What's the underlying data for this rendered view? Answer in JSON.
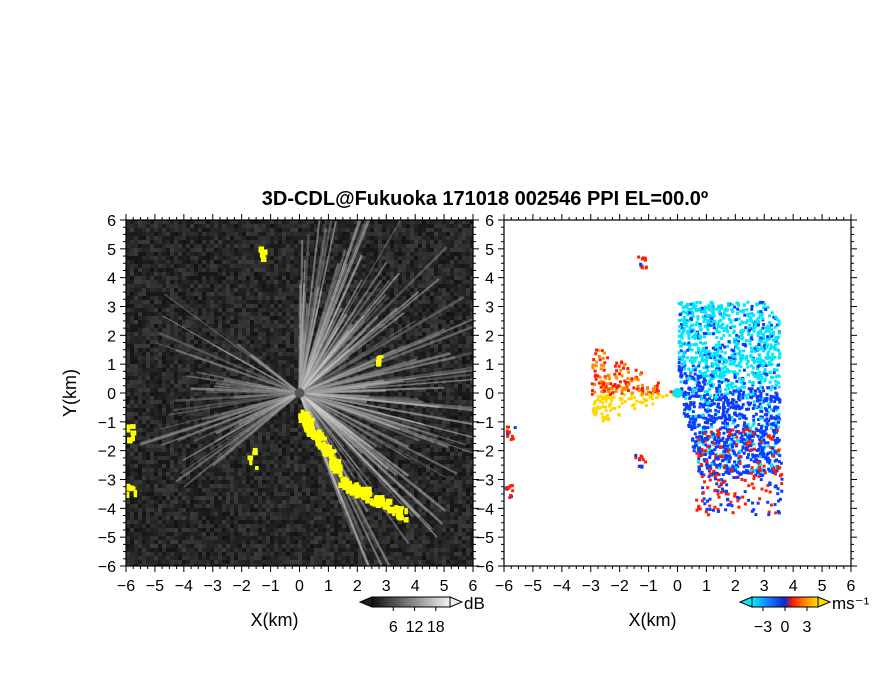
{
  "title": "3D-CDL@Fukuoka 171018 002546 PPI EL=00.0º",
  "colors": {
    "background": "#ffffff",
    "left_panel_background": "#1e1e1e",
    "yellow_highlight": "#ffff00",
    "velocity_cyan": "#00e8f8",
    "velocity_blue": "#0a3cff",
    "velocity_red": "#ff1e00",
    "velocity_orange": "#ff8c00",
    "velocity_yellow": "#ffd800"
  },
  "chart_data": [
    {
      "type": "heatmap",
      "panel": "left",
      "quantity_unit": "dB",
      "xlabel": "X(km)",
      "ylabel": "Y(km)",
      "xlim": [
        -6,
        6
      ],
      "ylim": [
        -6,
        6
      ],
      "x_ticks": [
        "−6",
        "−5",
        "−4",
        "−3",
        "−2",
        "−1",
        "0",
        "1",
        "2",
        "3",
        "4",
        "5",
        "6"
      ],
      "y_ticks": [
        "6",
        "5",
        "4",
        "3",
        "2",
        "1",
        "0",
        "−1",
        "−2",
        "−3",
        "−4",
        "−5",
        "−6"
      ],
      "colorbar": {
        "label": "dB",
        "range": [
          0,
          22
        ],
        "ticks": [
          "6",
          "12",
          "18"
        ],
        "tick_values": [
          6,
          12,
          18
        ],
        "palette": "grayscale"
      },
      "highlight_regions": [
        {
          "x": [
            0.0,
            1.3
          ],
          "y": [
            -0.7,
            -2.6
          ]
        },
        {
          "x": [
            1.4,
            3.6
          ],
          "y": [
            -3.0,
            -4.2
          ]
        },
        {
          "x": [
            -6.0,
            -5.8
          ],
          "y": [
            -1.1,
            -1.6
          ]
        },
        {
          "x": [
            -6.0,
            -5.7
          ],
          "y": [
            -3.1,
            -3.6
          ]
        },
        {
          "x": [
            -1.7,
            -1.5
          ],
          "y": [
            -2.0,
            -2.5
          ]
        },
        {
          "x": [
            2.5,
            2.7
          ],
          "y": [
            1.1,
            1.2
          ]
        },
        {
          "x": [
            -1.4,
            -1.3
          ],
          "y": [
            4.8,
            5.0
          ]
        }
      ]
    },
    {
      "type": "heatmap",
      "panel": "right",
      "quantity_unit": "ms⁻¹",
      "xlabel": "X(km)",
      "ylabel": "",
      "xlim": [
        -6,
        6
      ],
      "ylim": [
        -6,
        6
      ],
      "x_ticks": [
        "−6",
        "−5",
        "−4",
        "−3",
        "−2",
        "−1",
        "0",
        "1",
        "2",
        "3",
        "4",
        "5",
        "6"
      ],
      "y_ticks": [
        "6",
        "5",
        "4",
        "3",
        "2",
        "1",
        "0",
        "−1",
        "−2",
        "−3",
        "−4",
        "−5",
        "−6"
      ],
      "colorbar": {
        "label": "ms⁻¹",
        "range": [
          -4.5,
          4.5
        ],
        "ticks": [
          "−3",
          "0",
          "3"
        ],
        "tick_values": [
          -3,
          0,
          3
        ],
        "palette": "cyan-blue-red-yellow"
      },
      "regions": [
        {
          "range": "toward (negative)",
          "x": [
            0.0,
            3.5
          ],
          "y": [
            -2.8,
            3.2
          ]
        },
        {
          "range": "away (positive)",
          "x": [
            -3.0,
            0.0
          ],
          "y": [
            -1.2,
            2.0
          ]
        }
      ]
    }
  ]
}
